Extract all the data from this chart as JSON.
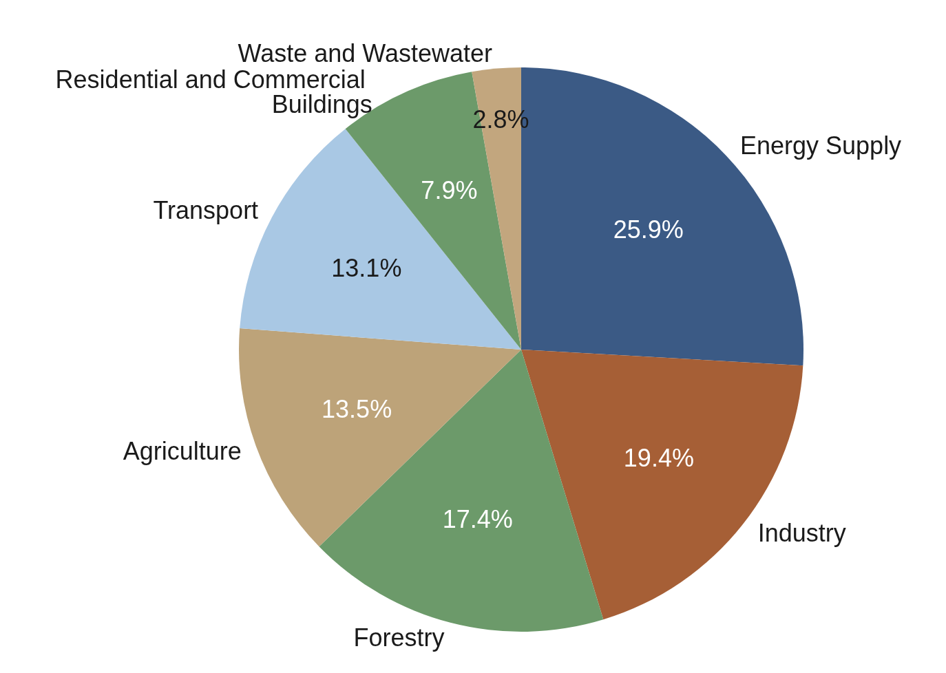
{
  "chart_data": {
    "type": "pie",
    "categories": [
      "Energy Supply",
      "Industry",
      "Forestry",
      "Agriculture",
      "Transport",
      "Residential and Commercial Buildings",
      "Waste and Wastewater"
    ],
    "values": [
      25.9,
      19.4,
      17.4,
      13.5,
      13.1,
      7.9,
      2.8
    ],
    "value_labels": [
      "25.9%",
      "19.4%",
      "17.4%",
      "13.5%",
      "13.1%",
      "7.9%",
      "2.8%"
    ],
    "colors": [
      "#3b5a85",
      "#a65f36",
      "#6c9a6a",
      "#bda379",
      "#a9c8e4",
      "#6c9a6a",
      "#c2a67e"
    ],
    "legend": false
  }
}
